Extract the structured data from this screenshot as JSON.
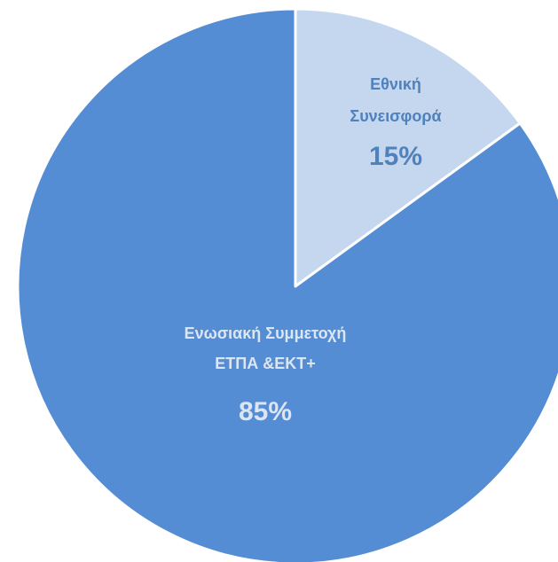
{
  "chart_data": {
    "type": "pie",
    "title": "",
    "slices": [
      {
        "label_lines": [
          "Εθνική",
          "Συνεισφορά"
        ],
        "value": 15,
        "value_label": "15%",
        "color": "#c5d7ee",
        "text_color": "#4f81bd"
      },
      {
        "label_lines": [
          "Ενωσιακή Συμμετοχή",
          "ΕΤΠΑ &ΕΚΤ+"
        ],
        "value": 85,
        "value_label": "85%",
        "color": "#548dd4",
        "text_color": "#dce6f2"
      }
    ],
    "start_angle_deg": 0,
    "direction": "clockwise",
    "slice_border_color": "#ffffff"
  }
}
